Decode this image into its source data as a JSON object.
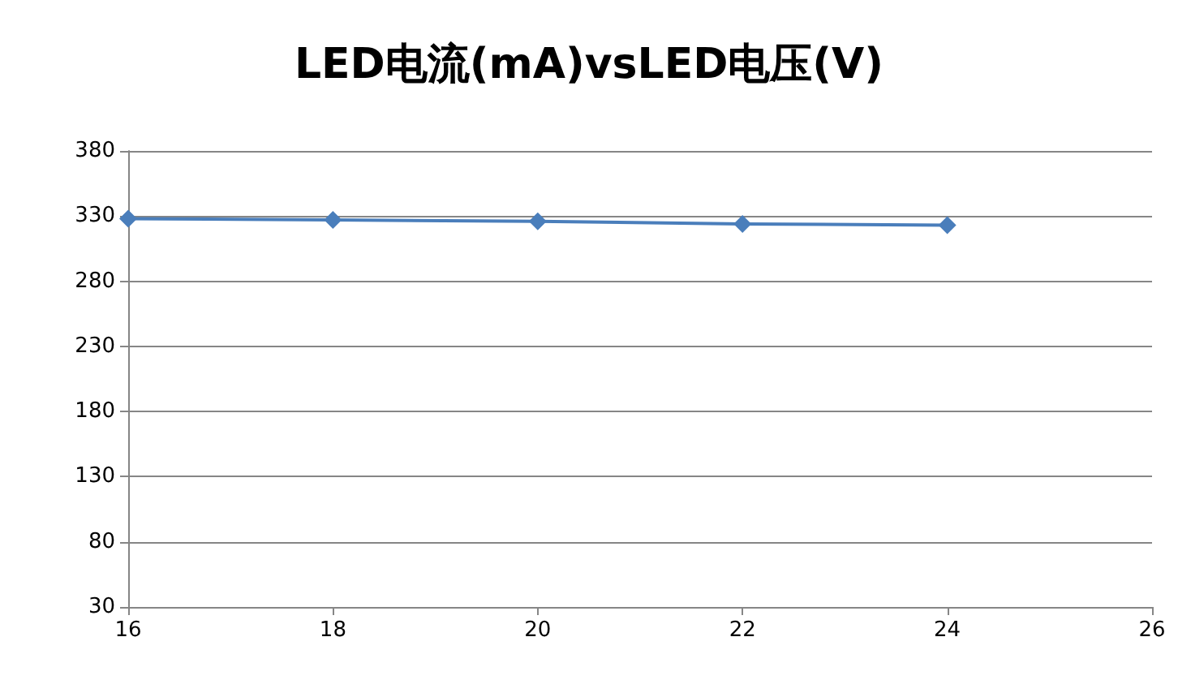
{
  "chart_data": {
    "type": "line",
    "title": "LED电流(mA)vsLED电压(V)",
    "x": [
      16,
      18,
      20,
      22,
      24
    ],
    "series": [
      {
        "color": "#4a7ebb",
        "values": [
          328,
          327,
          326,
          324,
          323
        ]
      }
    ],
    "xlim": [
      16,
      26
    ],
    "xticks": [
      16,
      18,
      20,
      22,
      24,
      26
    ],
    "ylim": [
      30,
      380
    ],
    "yticks": [
      30,
      80,
      130,
      180,
      230,
      280,
      330,
      380
    ],
    "grid": "y",
    "marker": "diamond",
    "line_style": "solid"
  }
}
